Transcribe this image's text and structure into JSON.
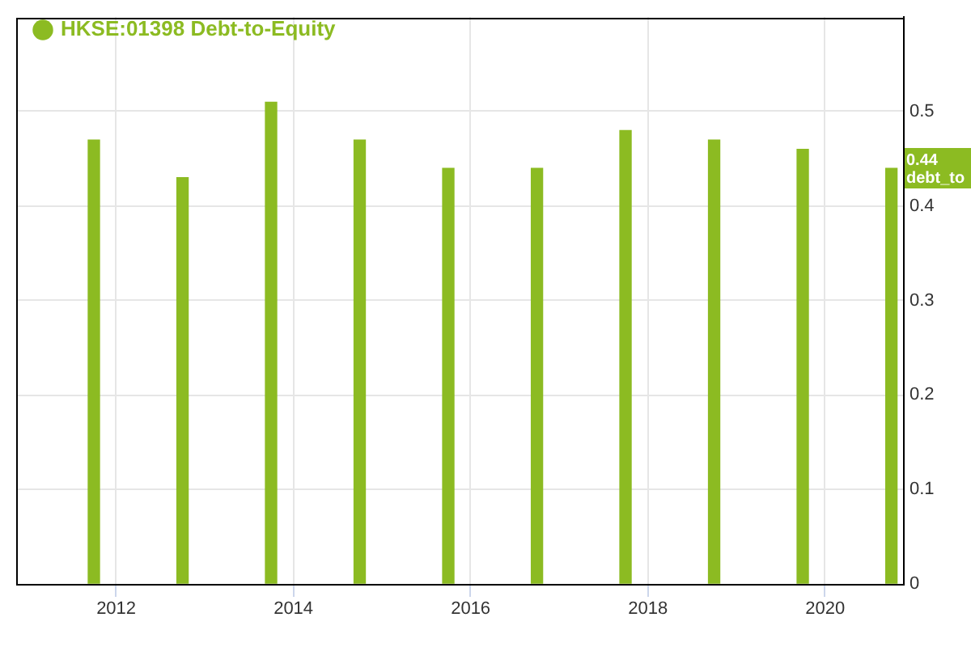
{
  "chart_data": {
    "type": "bar",
    "x": [
      "2011-10",
      "2012-10",
      "2013-10",
      "2014-10",
      "2015-10",
      "2016-10",
      "2017-10",
      "2018-10",
      "2019-10",
      "2020-10"
    ],
    "series": [
      {
        "name": "HKSE:01398 Debt-to-Equity",
        "color": "#8cbb22",
        "values": [
          0.47,
          0.43,
          0.51,
          0.47,
          0.44,
          0.44,
          0.48,
          0.47,
          0.46,
          0.44
        ]
      }
    ],
    "xlim": [
      "2010-11-15",
      "2020-11-18"
    ],
    "xticks": [
      "2012",
      "2014",
      "2016",
      "2018",
      "2020"
    ],
    "ylim": [
      0,
      0.6
    ],
    "yticks": [
      0,
      0.1,
      0.2,
      0.3,
      0.4,
      0.5
    ],
    "grid": true,
    "legend": "top left",
    "annotations": [
      "0.44 debt_to"
    ]
  }
}
